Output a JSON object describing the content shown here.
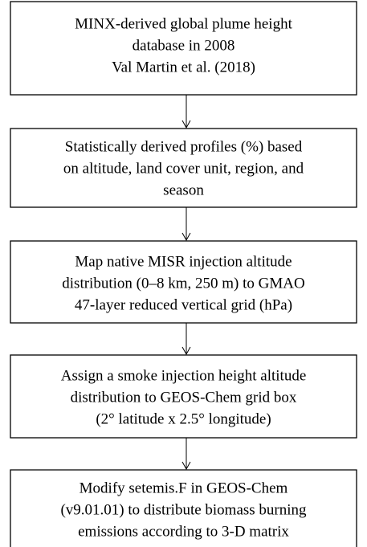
{
  "nodes": [
    {
      "lines": [
        "MINX-derived global plume height",
        "database in 2008",
        "Val Martin et al. (2018)"
      ]
    },
    {
      "lines": [
        "Statistically derived profiles (%) based",
        "on altitude, land cover unit, region, and",
        "season"
      ]
    },
    {
      "lines": [
        "Map native MISR injection altitude",
        "distribution (0–8 km, 250 m) to GMAO",
        "47-layer reduced vertical grid (hPa)"
      ]
    },
    {
      "lines": [
        "Assign a smoke injection height altitude",
        "distribution to GEOS-Chem grid box",
        "(2° latitude x 2.5° longitude)"
      ]
    },
    {
      "lines": [
        "Modify setemis.F in GEOS-Chem",
        "(v9.01.01) to distribute biomass burning",
        "emissions according to 3-D matrix"
      ]
    }
  ]
}
